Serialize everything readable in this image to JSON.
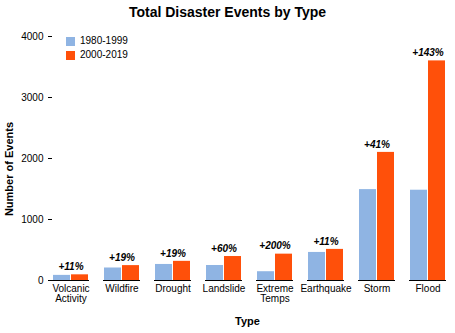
{
  "chart_data": {
    "type": "bar",
    "title": "Total Disaster Events by Type",
    "x_label": "Type",
    "y_label": "Number of Events",
    "categories": [
      "Volcanic Activity",
      "Wildfire",
      "Drought",
      "Landslide",
      "Extreme Temps",
      "Earthquake",
      "Storm",
      "Flood"
    ],
    "series": [
      {
        "name": "1980-1999",
        "color": "#8fb4e3",
        "values": [
          84,
          205,
          263,
          246,
          144,
          460,
          1490,
          1480
        ]
      },
      {
        "name": "2000-2019",
        "color": "#ff500a",
        "values": [
          93,
          244,
          314,
          393,
          432,
          510,
          2100,
          3600
        ]
      }
    ],
    "annotations": [
      "+11%",
      "+19%",
      "+19%",
      "+60%",
      "+200%",
      "+11%",
      "+41%",
      "+143%"
    ],
    "ylim": [
      0,
      4000
    ],
    "yticks": [
      0,
      1000,
      2000,
      3000,
      4000
    ],
    "grid": false,
    "legend": "top-left"
  }
}
